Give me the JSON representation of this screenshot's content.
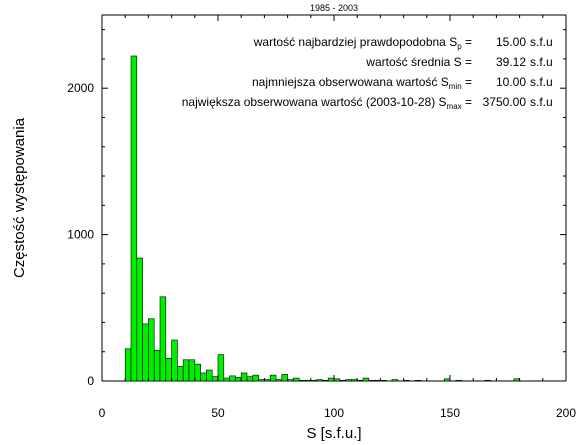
{
  "chart_data": {
    "type": "bar",
    "title": "1985 - 2003",
    "xlabel": "S [s.f.u.]",
    "ylabel": "Częstość występowania",
    "xlim": [
      0,
      200
    ],
    "ylim": [
      0,
      2500
    ],
    "xticks": [
      "0",
      "50",
      "100",
      "150",
      "200"
    ],
    "yticks": [
      "0",
      "1000",
      "2000"
    ],
    "bar_color": "#00ee00",
    "bin_width": 2.5,
    "bins": [
      {
        "x": 10.0,
        "y": 220
      },
      {
        "x": 12.5,
        "y": 2220
      },
      {
        "x": 15.0,
        "y": 840
      },
      {
        "x": 17.5,
        "y": 390
      },
      {
        "x": 20.0,
        "y": 425
      },
      {
        "x": 22.5,
        "y": 210
      },
      {
        "x": 25.0,
        "y": 575
      },
      {
        "x": 27.5,
        "y": 155
      },
      {
        "x": 30.0,
        "y": 280
      },
      {
        "x": 32.5,
        "y": 100
      },
      {
        "x": 35.0,
        "y": 145
      },
      {
        "x": 37.5,
        "y": 145
      },
      {
        "x": 40.0,
        "y": 115
      },
      {
        "x": 42.5,
        "y": 55
      },
      {
        "x": 45.0,
        "y": 75
      },
      {
        "x": 47.5,
        "y": 30
      },
      {
        "x": 50.0,
        "y": 180
      },
      {
        "x": 52.5,
        "y": 20
      },
      {
        "x": 55.0,
        "y": 35
      },
      {
        "x": 57.5,
        "y": 25
      },
      {
        "x": 60.0,
        "y": 55
      },
      {
        "x": 62.5,
        "y": 30
      },
      {
        "x": 65.0,
        "y": 40
      },
      {
        "x": 67.5,
        "y": 10
      },
      {
        "x": 70.0,
        "y": 10
      },
      {
        "x": 72.5,
        "y": 40
      },
      {
        "x": 75.0,
        "y": 10
      },
      {
        "x": 77.5,
        "y": 45
      },
      {
        "x": 80.0,
        "y": 10
      },
      {
        "x": 82.5,
        "y": 20
      },
      {
        "x": 85.0,
        "y": 5
      },
      {
        "x": 87.5,
        "y": 5
      },
      {
        "x": 90.0,
        "y": 5
      },
      {
        "x": 92.5,
        "y": 10
      },
      {
        "x": 95.0,
        "y": 5
      },
      {
        "x": 97.5,
        "y": 20
      },
      {
        "x": 100.0,
        "y": 15
      },
      {
        "x": 102.5,
        "y": 5
      },
      {
        "x": 105.0,
        "y": 10
      },
      {
        "x": 107.5,
        "y": 10
      },
      {
        "x": 110.0,
        "y": 5
      },
      {
        "x": 112.5,
        "y": 20
      },
      {
        "x": 115.0,
        "y": 5
      },
      {
        "x": 117.5,
        "y": 5
      },
      {
        "x": 120.0,
        "y": 5
      },
      {
        "x": 125.0,
        "y": 10
      },
      {
        "x": 130.0,
        "y": 5
      },
      {
        "x": 135.0,
        "y": 5
      },
      {
        "x": 147.5,
        "y": 15
      },
      {
        "x": 152.5,
        "y": 5
      },
      {
        "x": 165.0,
        "y": 5
      },
      {
        "x": 177.5,
        "y": 15
      }
    ],
    "annotations": [
      {
        "label": "wartość najbardziej prawdopodobna S",
        "sub": "p",
        "value": "15.00",
        "unit": "s.f.u"
      },
      {
        "label": "wartość średnia S",
        "sub": "",
        "value": "39.12",
        "unit": "s.f.u"
      },
      {
        "label": "najmniejsza obserwowana wartość S",
        "sub": "min",
        "value": "10.00",
        "unit": "s.f.u"
      },
      {
        "label": "największa obserwowana wartość (2003-10-28) S",
        "sub": "max",
        "value": "3750.00",
        "unit": "s.f.u"
      }
    ]
  }
}
